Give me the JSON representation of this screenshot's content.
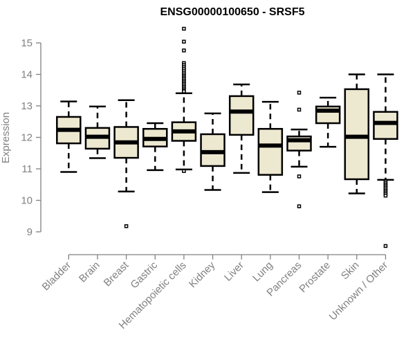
{
  "chart_data": {
    "type": "boxplot",
    "title": "ENSG00000100650 - SRSF5",
    "xlabel": "",
    "ylabel": "Expression",
    "ylim": [
      8.4,
      15.5
    ],
    "yticks": [
      9,
      10,
      11,
      12,
      13,
      14,
      15
    ],
    "grid": false,
    "legend": "none",
    "box_fill": "#EDE8D0",
    "categories": [
      "Bladder",
      "Brain",
      "Breast",
      "Gastric",
      "Hematopoietic cells",
      "Kidney",
      "Liver",
      "Lung",
      "Pancreas",
      "Prostate",
      "Skin",
      "Unknown / Other"
    ],
    "series": [
      {
        "name": "Bladder",
        "whisker_low": 10.9,
        "q1": 11.81,
        "median": 12.24,
        "q3": 12.65,
        "whisker_high": 13.14,
        "outliers": []
      },
      {
        "name": "Brain",
        "whisker_low": 11.34,
        "q1": 11.64,
        "median": 12.02,
        "q3": 12.3,
        "whisker_high": 12.98,
        "outliers": []
      },
      {
        "name": "Breast",
        "whisker_low": 10.28,
        "q1": 11.35,
        "median": 11.84,
        "q3": 12.33,
        "whisker_high": 13.18,
        "outliers": [
          9.18
        ]
      },
      {
        "name": "Gastric",
        "whisker_low": 10.96,
        "q1": 11.71,
        "median": 11.95,
        "q3": 12.27,
        "whisker_high": 12.45,
        "outliers": []
      },
      {
        "name": "Hematopoietic cells",
        "whisker_low": 10.98,
        "q1": 11.89,
        "median": 12.19,
        "q3": 12.48,
        "whisker_high": 13.4,
        "outliers": [
          15.45,
          15.04,
          14.76,
          14.36,
          14.3,
          14.24,
          14.18,
          14.12,
          14.06,
          14.0,
          13.95,
          13.9,
          13.85,
          13.8,
          13.75,
          13.7,
          13.65,
          13.6,
          13.55,
          13.5,
          13.46,
          10.93
        ]
      },
      {
        "name": "Kidney",
        "whisker_low": 10.33,
        "q1": 11.09,
        "median": 11.53,
        "q3": 12.1,
        "whisker_high": 12.76,
        "outliers": []
      },
      {
        "name": "Liver",
        "whisker_low": 10.87,
        "q1": 12.08,
        "median": 12.82,
        "q3": 13.31,
        "whisker_high": 13.68,
        "outliers": []
      },
      {
        "name": "Lung",
        "whisker_low": 10.26,
        "q1": 10.81,
        "median": 11.74,
        "q3": 12.27,
        "whisker_high": 13.13,
        "outliers": []
      },
      {
        "name": "Pancreas",
        "whisker_low": 11.07,
        "q1": 11.58,
        "median": 11.91,
        "q3": 12.03,
        "whisker_high": 12.25,
        "outliers": [
          13.42,
          12.88,
          10.76,
          9.81
        ]
      },
      {
        "name": "Prostate",
        "whisker_low": 11.7,
        "q1": 12.45,
        "median": 12.85,
        "q3": 12.98,
        "whisker_high": 13.26,
        "outliers": []
      },
      {
        "name": "Skin",
        "whisker_low": 10.22,
        "q1": 10.67,
        "median": 12.02,
        "q3": 13.53,
        "whisker_high": 14.0,
        "outliers": []
      },
      {
        "name": "Unknown / Other",
        "whisker_low": 10.65,
        "q1": 11.95,
        "median": 12.46,
        "q3": 12.81,
        "whisker_high": 14.0,
        "outliers": [
          10.6,
          10.55,
          10.5,
          10.45,
          10.4,
          10.35,
          10.3,
          10.25,
          10.2,
          10.15,
          8.55
        ]
      }
    ]
  }
}
